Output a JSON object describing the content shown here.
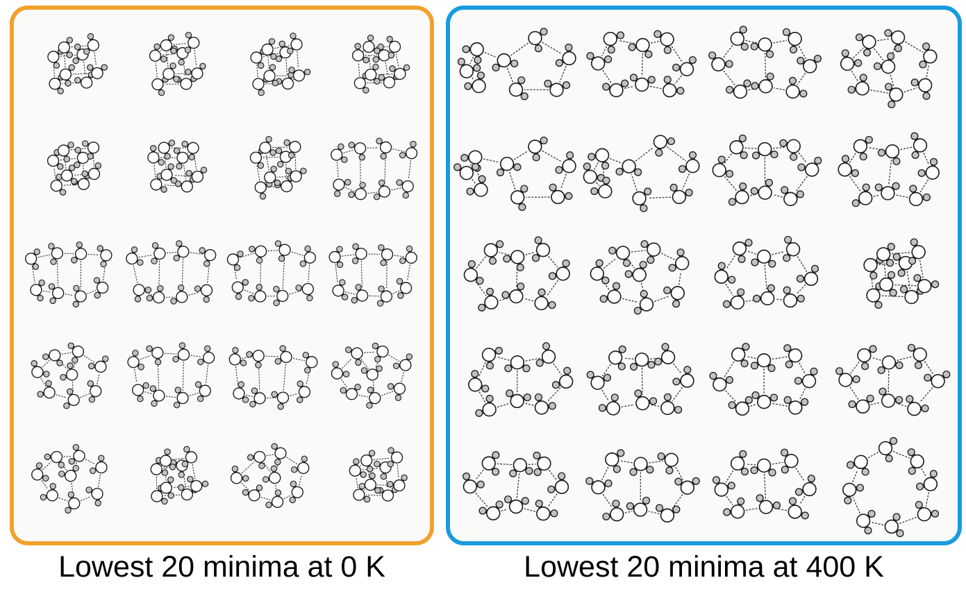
{
  "figure": {
    "title": "",
    "panels": [
      {
        "id": "panel-0k",
        "caption": "Lowest 20 minima at 0 K",
        "border_color": "#F0A22C",
        "background": "#fafaf9",
        "grid": {
          "rows": 5,
          "cols": 4
        },
        "x_spread": 1.0,
        "clusters": [
          {
            "type": "cube",
            "seed": 11
          },
          {
            "type": "cube",
            "seed": 22
          },
          {
            "type": "cube",
            "seed": 33
          },
          {
            "type": "cube",
            "seed": 44
          },
          {
            "type": "cube",
            "seed": 55
          },
          {
            "type": "cube",
            "seed": 66
          },
          {
            "type": "cube",
            "seed": 77
          },
          {
            "type": "open",
            "seed": 88
          },
          {
            "type": "open",
            "seed": 99
          },
          {
            "type": "open",
            "seed": 110
          },
          {
            "type": "open",
            "seed": 121
          },
          {
            "type": "open",
            "seed": 132
          },
          {
            "type": "cage",
            "seed": 143
          },
          {
            "type": "open",
            "seed": 154
          },
          {
            "type": "open",
            "seed": 165
          },
          {
            "type": "cage",
            "seed": 176
          },
          {
            "type": "cage",
            "seed": 187
          },
          {
            "type": "cube",
            "seed": 198
          },
          {
            "type": "cage",
            "seed": 209
          },
          {
            "type": "cube",
            "seed": 220
          }
        ]
      },
      {
        "id": "panel-400k",
        "caption": "Lowest 20 minima at 400 K",
        "border_color": "#189BDE",
        "background": "#fafaf9",
        "grid": {
          "rows": 5,
          "cols": 4
        },
        "x_spread": 1.08,
        "clusters": [
          {
            "type": "tailring",
            "seed": 231
          },
          {
            "type": "fused",
            "seed": 242
          },
          {
            "type": "fused",
            "seed": 253
          },
          {
            "type": "cage",
            "seed": 264
          },
          {
            "type": "tailring",
            "seed": 275
          },
          {
            "type": "tailring",
            "seed": 286
          },
          {
            "type": "fused",
            "seed": 297
          },
          {
            "type": "fused",
            "seed": 308
          },
          {
            "type": "fused",
            "seed": 319
          },
          {
            "type": "cage",
            "seed": 330
          },
          {
            "type": "fused",
            "seed": 341
          },
          {
            "type": "cube",
            "seed": 352
          },
          {
            "type": "fused",
            "seed": 363
          },
          {
            "type": "fused",
            "seed": 374
          },
          {
            "type": "fused",
            "seed": 385
          },
          {
            "type": "fused",
            "seed": 396
          },
          {
            "type": "fused",
            "seed": 407
          },
          {
            "type": "fused",
            "seed": 418
          },
          {
            "type": "fused",
            "seed": 429
          },
          {
            "type": "ring",
            "seed": 440
          }
        ]
      }
    ],
    "molecule_style": {
      "oxygen_fill": "#ffffff",
      "hydrogen_fill": "#c2c2c2",
      "outline": "#1f1f1f",
      "bond_color": "#a8a8a8",
      "bond_outline": "#2a2a2a",
      "hbond_color": "#3c3c3c"
    },
    "caption_color": "#000000"
  }
}
